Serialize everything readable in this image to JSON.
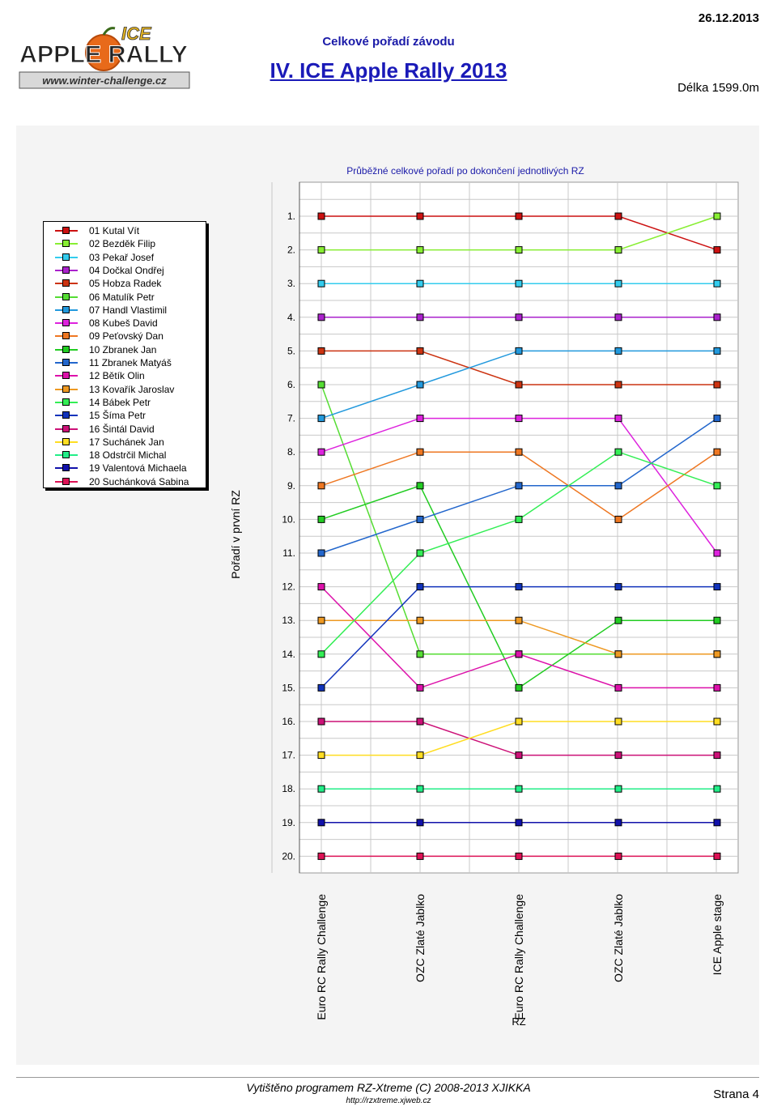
{
  "header": {
    "date": "26.12.2013",
    "subtitle": "Celkové pořadí závodu",
    "title": "IV. ICE Apple Rally 2013",
    "length": "Délka 1599.0m",
    "logo": {
      "text_top": "ICE",
      "text_main": "APPLE RALLY",
      "url": "www.winter-challenge.cz"
    }
  },
  "footer": {
    "program": "Vytištěno programem RZ-Xtreme (C) 2008-2013  XJIKKA",
    "url": "http://rzxtreme.xjweb.cz",
    "page": "Strana 4"
  },
  "chart_data": {
    "type": "line",
    "title": "Průběžné celkové pořadí po dokončení jednotlivých RZ",
    "ylabel": "Pořadí v první RZ",
    "xlabel": "RZ",
    "y_inverted": true,
    "ylim": [
      1,
      20
    ],
    "y_ticks": [
      "1.",
      "2.",
      "3.",
      "4.",
      "5.",
      "6.",
      "7.",
      "8.",
      "9.",
      "10.",
      "11.",
      "12.",
      "13.",
      "14.",
      "15.",
      "16.",
      "17.",
      "18.",
      "19.",
      "20."
    ],
    "categories": [
      "Euro RC Rally Challenge",
      "OZC Zlaté Jablko",
      "Euro RC Rally Challenge",
      "OZC Zlaté Jablko",
      "ICE Apple stage"
    ],
    "grid": true,
    "legend_position": "left",
    "series": [
      {
        "name": "01 Kutal Vít",
        "color": "#cc1111",
        "values": [
          1,
          1,
          1,
          1,
          2
        ]
      },
      {
        "name": "02 Bezděk Filip",
        "color": "#88ee33",
        "values": [
          2,
          2,
          2,
          2,
          1
        ]
      },
      {
        "name": "03 Pekař Josef",
        "color": "#33ccee",
        "values": [
          3,
          3,
          3,
          3,
          3
        ]
      },
      {
        "name": "04 Dočkal Ondřej",
        "color": "#aa22cc",
        "values": [
          4,
          4,
          4,
          4,
          4
        ]
      },
      {
        "name": "05 Hobza Radek",
        "color": "#cc3311",
        "values": [
          5,
          5,
          6,
          6,
          6
        ]
      },
      {
        "name": "06 Matulík Petr",
        "color": "#55dd33",
        "values": [
          6,
          14,
          14,
          14,
          14
        ]
      },
      {
        "name": "07 Handl Vlastimil",
        "color": "#2299dd",
        "values": [
          7,
          6,
          5,
          5,
          5
        ]
      },
      {
        "name": "08 Kubeš David",
        "color": "#dd22dd",
        "values": [
          8,
          7,
          7,
          7,
          11
        ]
      },
      {
        "name": "09 Peťovský Dan",
        "color": "#ee7722",
        "values": [
          9,
          8,
          8,
          10,
          8
        ]
      },
      {
        "name": "10 Zbranek Jan",
        "color": "#22cc22",
        "values": [
          10,
          9,
          15,
          13,
          13
        ]
      },
      {
        "name": "11 Zbranek Matyáš",
        "color": "#2266cc",
        "values": [
          11,
          10,
          9,
          9,
          7
        ]
      },
      {
        "name": "12 Bětík Olin",
        "color": "#dd11aa",
        "values": [
          12,
          15,
          14,
          15,
          15
        ]
      },
      {
        "name": "13 Kovařík Jaroslav",
        "color": "#ee9922",
        "values": [
          13,
          13,
          13,
          14,
          14
        ]
      },
      {
        "name": "14 Bábek Petr",
        "color": "#33ee55",
        "values": [
          14,
          11,
          10,
          8,
          9
        ]
      },
      {
        "name": "15 Šíma Petr",
        "color": "#1133bb",
        "values": [
          15,
          12,
          12,
          12,
          12
        ]
      },
      {
        "name": "16 Šintál David",
        "color": "#cc1177",
        "values": [
          16,
          16,
          17,
          17,
          17
        ]
      },
      {
        "name": "17 Suchánek Jan",
        "color": "#ffdd22",
        "values": [
          17,
          17,
          16,
          16,
          16
        ]
      },
      {
        "name": "18 Odstrčil Michal",
        "color": "#22ee88",
        "values": [
          18,
          18,
          18,
          18,
          18
        ]
      },
      {
        "name": "19 Valentová Michaela",
        "color": "#1111aa",
        "values": [
          19,
          19,
          19,
          19,
          19
        ]
      },
      {
        "name": "20 Suchánková Sabina",
        "color": "#dd1155",
        "values": [
          20,
          20,
          20,
          20,
          20
        ]
      }
    ]
  }
}
